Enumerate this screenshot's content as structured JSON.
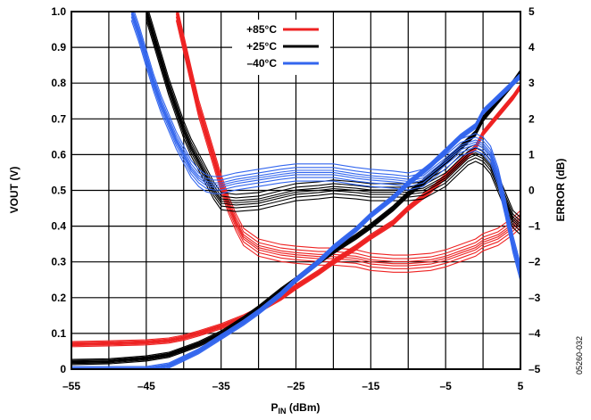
{
  "chart_data": {
    "type": "line",
    "xlabel": "P",
    "xlabel_sub": "IN",
    "xlabel_unit": " (dBm)",
    "ylabel": "VOUT (V)",
    "y2label": "ERROR (dB)",
    "xlim": [
      -55,
      5
    ],
    "ylim": [
      0,
      1.0
    ],
    "y2lim": [
      -5,
      5
    ],
    "x_ticks": [
      "–55",
      "–45",
      "–35",
      "–25",
      "–15",
      "–5",
      "5"
    ],
    "x_tick_values": [
      -55,
      -45,
      -35,
      -25,
      -15,
      -5,
      5
    ],
    "y_ticks": [
      "0",
      "0.1",
      "0.2",
      "0.3",
      "0.4",
      "0.5",
      "0.6",
      "0.7",
      "0.8",
      "0.9",
      "1.0"
    ],
    "y_tick_values": [
      0,
      0.1,
      0.2,
      0.3,
      0.4,
      0.5,
      0.6,
      0.7,
      0.8,
      0.9,
      1.0
    ],
    "y2_ticks": [
      "–5",
      "–4",
      "–3",
      "–2",
      "–1",
      "0",
      "1",
      "2",
      "3",
      "4",
      "5"
    ],
    "y2_tick_values": [
      -5,
      -4,
      -3,
      -2,
      -1,
      0,
      1,
      2,
      3,
      4,
      5
    ],
    "grid": true,
    "legend_position": "top-center",
    "figure_code": "05260-032",
    "series": [
      {
        "name": "+85°C",
        "color": "#ee2222",
        "vout": {
          "x": [
            -55,
            -50,
            -45,
            -42,
            -40,
            -38,
            -35,
            -32,
            -30,
            -27,
            -25,
            -22,
            -20,
            -17,
            -15,
            -12,
            -10,
            -7,
            -5,
            -3,
            -1,
            0,
            2,
            4,
            5
          ],
          "y": [
            0.07,
            0.072,
            0.075,
            0.08,
            0.088,
            0.1,
            0.12,
            0.145,
            0.165,
            0.2,
            0.23,
            0.27,
            0.3,
            0.34,
            0.37,
            0.41,
            0.45,
            0.5,
            0.54,
            0.58,
            0.62,
            0.66,
            0.71,
            0.76,
            0.79
          ]
        },
        "error": {
          "x": [
            -41,
            -40,
            -39,
            -38,
            -37,
            -36,
            -35,
            -34,
            -33,
            -32,
            -30,
            -27,
            -25,
            -22,
            -20,
            -17,
            -15,
            -12,
            -10,
            -7,
            -5,
            -3,
            -1,
            0,
            2,
            4,
            5
          ],
          "y": [
            5.0,
            4.1,
            3.2,
            2.3,
            1.6,
            0.9,
            0.2,
            -0.4,
            -0.9,
            -1.3,
            -1.6,
            -1.75,
            -1.8,
            -1.85,
            -1.85,
            -1.9,
            -2.0,
            -2.05,
            -2.05,
            -2.0,
            -1.9,
            -1.75,
            -1.6,
            -1.45,
            -1.3,
            -1.0,
            -0.8
          ]
        }
      },
      {
        "name": "+25°C",
        "color": "#000000",
        "vout": {
          "x": [
            -55,
            -50,
            -45,
            -42,
            -40,
            -38,
            -35,
            -32,
            -30,
            -27,
            -25,
            -22,
            -20,
            -17,
            -15,
            -12,
            -10,
            -7,
            -5,
            -3,
            -1,
            0,
            2,
            4,
            5
          ],
          "y": [
            0.02,
            0.022,
            0.03,
            0.04,
            0.055,
            0.07,
            0.1,
            0.14,
            0.17,
            0.22,
            0.25,
            0.3,
            0.33,
            0.37,
            0.4,
            0.45,
            0.49,
            0.54,
            0.58,
            0.62,
            0.66,
            0.7,
            0.75,
            0.8,
            0.83
          ]
        },
        "error": {
          "x": [
            -45,
            -44,
            -43,
            -42,
            -41,
            -40,
            -39,
            -38,
            -37,
            -36,
            -35,
            -33,
            -30,
            -27,
            -25,
            -22,
            -20,
            -17,
            -15,
            -12,
            -10,
            -8,
            -5,
            -3,
            -2,
            -1,
            0,
            1,
            2,
            3,
            4,
            5
          ],
          "y": [
            5.0,
            4.3,
            3.6,
            2.9,
            2.3,
            1.7,
            1.2,
            0.8,
            0.4,
            0.0,
            -0.3,
            -0.35,
            -0.3,
            -0.15,
            -0.05,
            0.0,
            0.05,
            0.0,
            -0.05,
            -0.05,
            -0.05,
            0.0,
            0.35,
            0.75,
            0.95,
            1.05,
            0.95,
            0.7,
            0.2,
            -0.3,
            -0.8,
            -1.0
          ]
        }
      },
      {
        "name": "–40°C",
        "color": "#3366ee",
        "vout": {
          "x": [
            -55,
            -50,
            -45,
            -42,
            -40,
            -38,
            -35,
            -32,
            -30,
            -27,
            -25,
            -22,
            -20,
            -17,
            -15,
            -12,
            -10,
            -7,
            -5,
            -3,
            -1,
            0,
            2,
            4,
            5
          ],
          "y": [
            0.0,
            0.0,
            0.0,
            0.01,
            0.03,
            0.05,
            0.09,
            0.13,
            0.16,
            0.21,
            0.25,
            0.3,
            0.34,
            0.39,
            0.43,
            0.48,
            0.52,
            0.57,
            0.61,
            0.65,
            0.68,
            0.72,
            0.76,
            0.8,
            0.82
          ]
        },
        "error": {
          "x": [
            -47,
            -46,
            -45,
            -44,
            -43,
            -42,
            -41,
            -40,
            -39,
            -38,
            -37,
            -36,
            -35,
            -33,
            -30,
            -27,
            -25,
            -22,
            -20,
            -17,
            -15,
            -12,
            -10,
            -8,
            -5,
            -3,
            -1,
            0,
            1,
            2,
            3,
            4,
            5
          ],
          "y": [
            5.0,
            4.4,
            3.7,
            3.0,
            2.4,
            1.9,
            1.4,
            1.0,
            0.6,
            0.35,
            0.2,
            0.15,
            0.15,
            0.25,
            0.35,
            0.45,
            0.5,
            0.5,
            0.5,
            0.4,
            0.35,
            0.3,
            0.25,
            0.35,
            0.85,
            1.2,
            1.35,
            1.25,
            1.0,
            0.4,
            -0.5,
            -1.5,
            -2.3
          ]
        }
      }
    ]
  }
}
